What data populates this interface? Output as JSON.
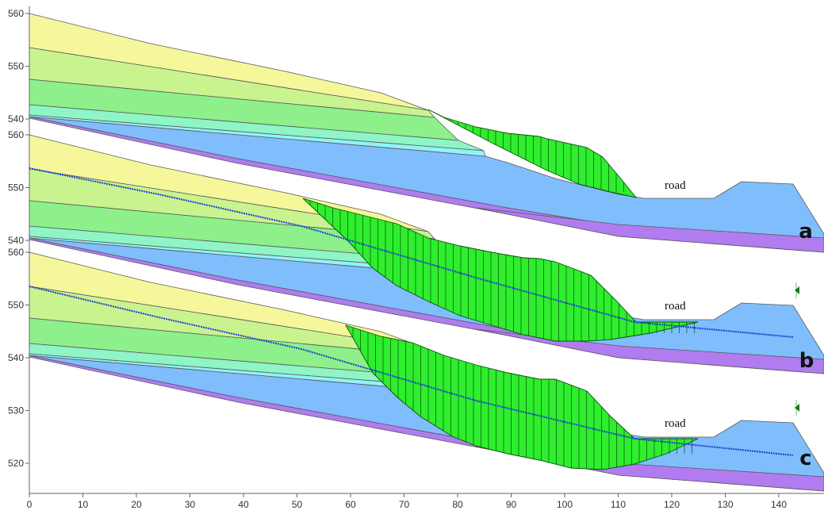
{
  "colors": {
    "yellow": "#f6f79a",
    "light_green": "#c9f38f",
    "green": "#8df08a",
    "mint": "#8ff5c6",
    "cyan": "#8ff4f6",
    "blue": "#80bdfd",
    "purple": "#b07cf0",
    "slip": "#2eee2e",
    "water": "#1d3fd0",
    "marker": "#1c7a1c"
  },
  "x_axis": {
    "ticks": [
      "0",
      "10",
      "20",
      "30",
      "40",
      "50",
      "60",
      "70",
      "80",
      "90",
      "100",
      "110",
      "120",
      "130",
      "140"
    ]
  },
  "panels": [
    {
      "id": "a",
      "letter": "a",
      "road_label": "road",
      "y_ticks": [
        "560",
        "550",
        "540"
      ],
      "has_water_table": false,
      "has_marker": false
    },
    {
      "id": "b",
      "letter": "b",
      "road_label": "road",
      "y_ticks": [
        "560",
        "550",
        "540"
      ],
      "has_water_table": true,
      "has_marker": true
    },
    {
      "id": "c",
      "letter": "c",
      "road_label": "road",
      "y_ticks": [
        "560",
        "550",
        "540",
        "530",
        "520"
      ],
      "has_water_table": true,
      "has_marker": true
    }
  ]
}
